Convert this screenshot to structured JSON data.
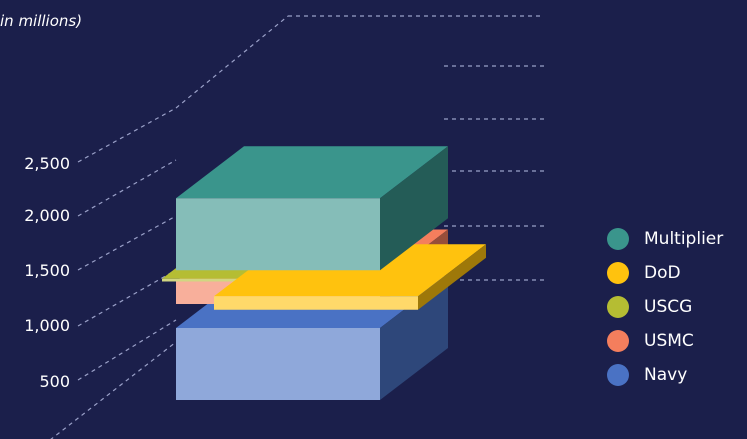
{
  "chart_data": {
    "type": "bar",
    "ylabel": "in millions)",
    "y_ticks": [
      "500",
      "1,000",
      "1,500",
      "2,000",
      "2,500"
    ],
    "ylim": [
      0,
      3500
    ],
    "stacked": true,
    "style": "3d-exploded-stack",
    "legend_position": "right",
    "series": [
      {
        "name": "Navy",
        "value": 800,
        "color": "#4a72c4"
      },
      {
        "name": "USMC",
        "value": 250,
        "color": "#f47e5d"
      },
      {
        "name": "USCG",
        "value": 30,
        "color": "#b5bd33"
      },
      {
        "name": "DoD",
        "value": 150,
        "color": "#ffc20e"
      },
      {
        "name": "Multiplier",
        "value": 800,
        "color": "#3a958c"
      }
    ],
    "legend": [
      {
        "name": "Multiplier",
        "color": "#3a958c"
      },
      {
        "name": "DoD",
        "color": "#ffc20e"
      },
      {
        "name": "USCG",
        "color": "#b5bd33"
      },
      {
        "name": "USMC",
        "color": "#f47e5d"
      },
      {
        "name": "Navy",
        "color": "#4a72c4"
      }
    ]
  }
}
